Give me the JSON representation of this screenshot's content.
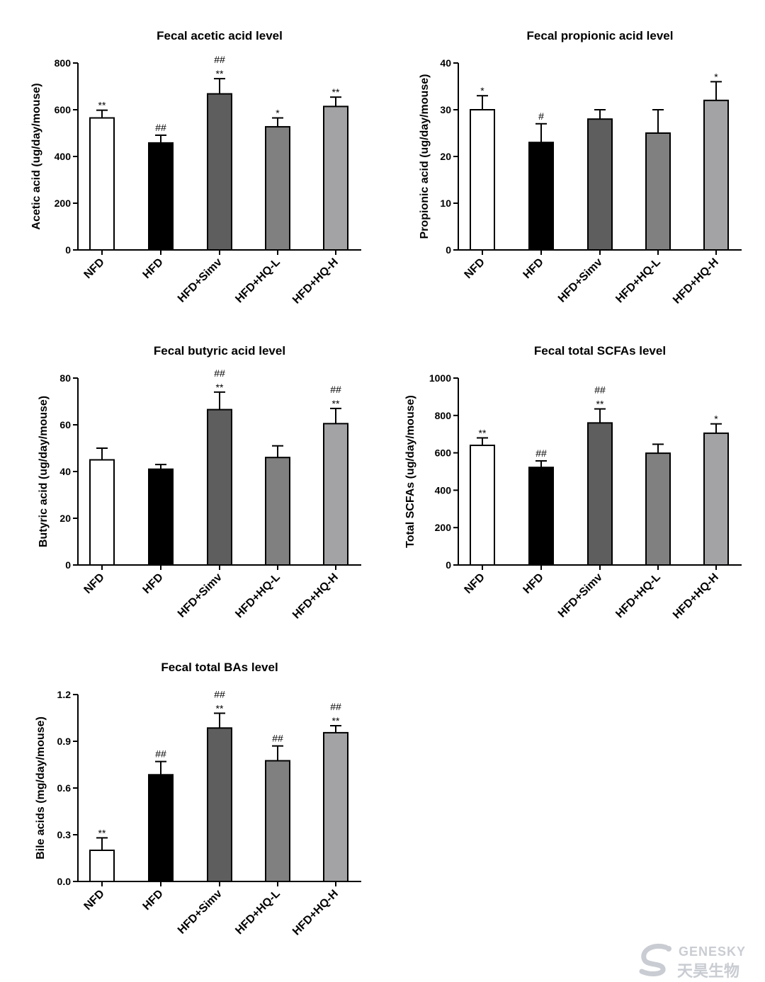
{
  "figure_colors": {
    "NFD": "#ffffff",
    "HFD": "#000000",
    "HFD+Simv": "#5e5e5e",
    "HFD+HQ-L": "#808080",
    "HFD+HQ-H": "#a3a3a6"
  },
  "chart_data": [
    {
      "type": "bar",
      "title": "Fecal acetic acid level",
      "ylabel": "Acetic acid (ug/day/mouse)",
      "categories": [
        "NFD",
        "HFD",
        "HFD+Simv",
        "HFD+HQ-L",
        "HFD+HQ-H"
      ],
      "values": [
        565,
        458,
        668,
        527,
        614
      ],
      "errors": [
        33,
        33,
        65,
        38,
        40
      ],
      "annotations": [
        [
          "**"
        ],
        [
          "##"
        ],
        [
          "##",
          "**"
        ],
        [
          "*"
        ],
        [
          "**"
        ]
      ],
      "ylim": [
        0,
        800
      ],
      "yticks": [
        "0",
        "200",
        "400",
        "600",
        "800"
      ]
    },
    {
      "type": "bar",
      "title": "Fecal propionic acid level",
      "ylabel": "Propionic acid (ug/day/mouse)",
      "categories": [
        "NFD",
        "HFD",
        "HFD+Simv",
        "HFD+HQ-L",
        "HFD+HQ-H"
      ],
      "values": [
        30,
        23,
        28,
        25,
        32
      ],
      "errors": [
        3,
        4,
        2,
        5,
        4
      ],
      "annotations": [
        [
          "*"
        ],
        [
          "#"
        ],
        [],
        [],
        [
          "*"
        ]
      ],
      "ylim": [
        0,
        40
      ],
      "yticks": [
        "0",
        "10",
        "20",
        "30",
        "40"
      ]
    },
    {
      "type": "bar",
      "title": "Fecal butyric acid level",
      "ylabel": "Butyric acid (ug/day/mouse)",
      "categories": [
        "NFD",
        "HFD",
        "HFD+Simv",
        "HFD+HQ-L",
        "HFD+HQ-H"
      ],
      "values": [
        45,
        41,
        66.5,
        46,
        60.5
      ],
      "errors": [
        5,
        2,
        7.5,
        5,
        6.5
      ],
      "annotations": [
        [],
        [],
        [
          "##",
          "**"
        ],
        [],
        [
          "##",
          "**"
        ]
      ],
      "ylim": [
        0,
        80
      ],
      "yticks": [
        "0",
        "20",
        "40",
        "60",
        "80"
      ]
    },
    {
      "type": "bar",
      "title": "Fecal total SCFAs level",
      "ylabel": "Total SCFAs (ug/day/mouse)",
      "categories": [
        "NFD",
        "HFD",
        "HFD+Simv",
        "HFD+HQ-L",
        "HFD+HQ-H"
      ],
      "values": [
        640,
        522,
        760,
        598,
        705
      ],
      "errors": [
        40,
        35,
        75,
        48,
        50
      ],
      "annotations": [
        [
          "**"
        ],
        [
          "##"
        ],
        [
          "##",
          "**"
        ],
        [],
        [
          "*"
        ]
      ],
      "ylim": [
        0,
        1000
      ],
      "yticks": [
        "0",
        "200",
        "400",
        "600",
        "800",
        "1000"
      ]
    },
    {
      "type": "bar",
      "title": "Fecal total BAs level",
      "ylabel": "Bile acids (mg/day/mouse)",
      "categories": [
        "NFD",
        "HFD",
        "HFD+Simv",
        "HFD+HQ-L",
        "HFD+HQ-H"
      ],
      "values": [
        0.2,
        0.685,
        0.985,
        0.775,
        0.955
      ],
      "errors": [
        0.08,
        0.085,
        0.095,
        0.095,
        0.045
      ],
      "annotations": [
        [
          "**"
        ],
        [
          "##"
        ],
        [
          "##",
          "**"
        ],
        [
          "##"
        ],
        [
          "##",
          "**"
        ]
      ],
      "ylim": [
        0,
        1.2
      ],
      "yticks": [
        "0.0",
        "0.3",
        "0.6",
        "0.9",
        "1.2"
      ]
    }
  ],
  "watermark": {
    "text_en": "GENESKY",
    "text_zh": "天昊生物"
  }
}
